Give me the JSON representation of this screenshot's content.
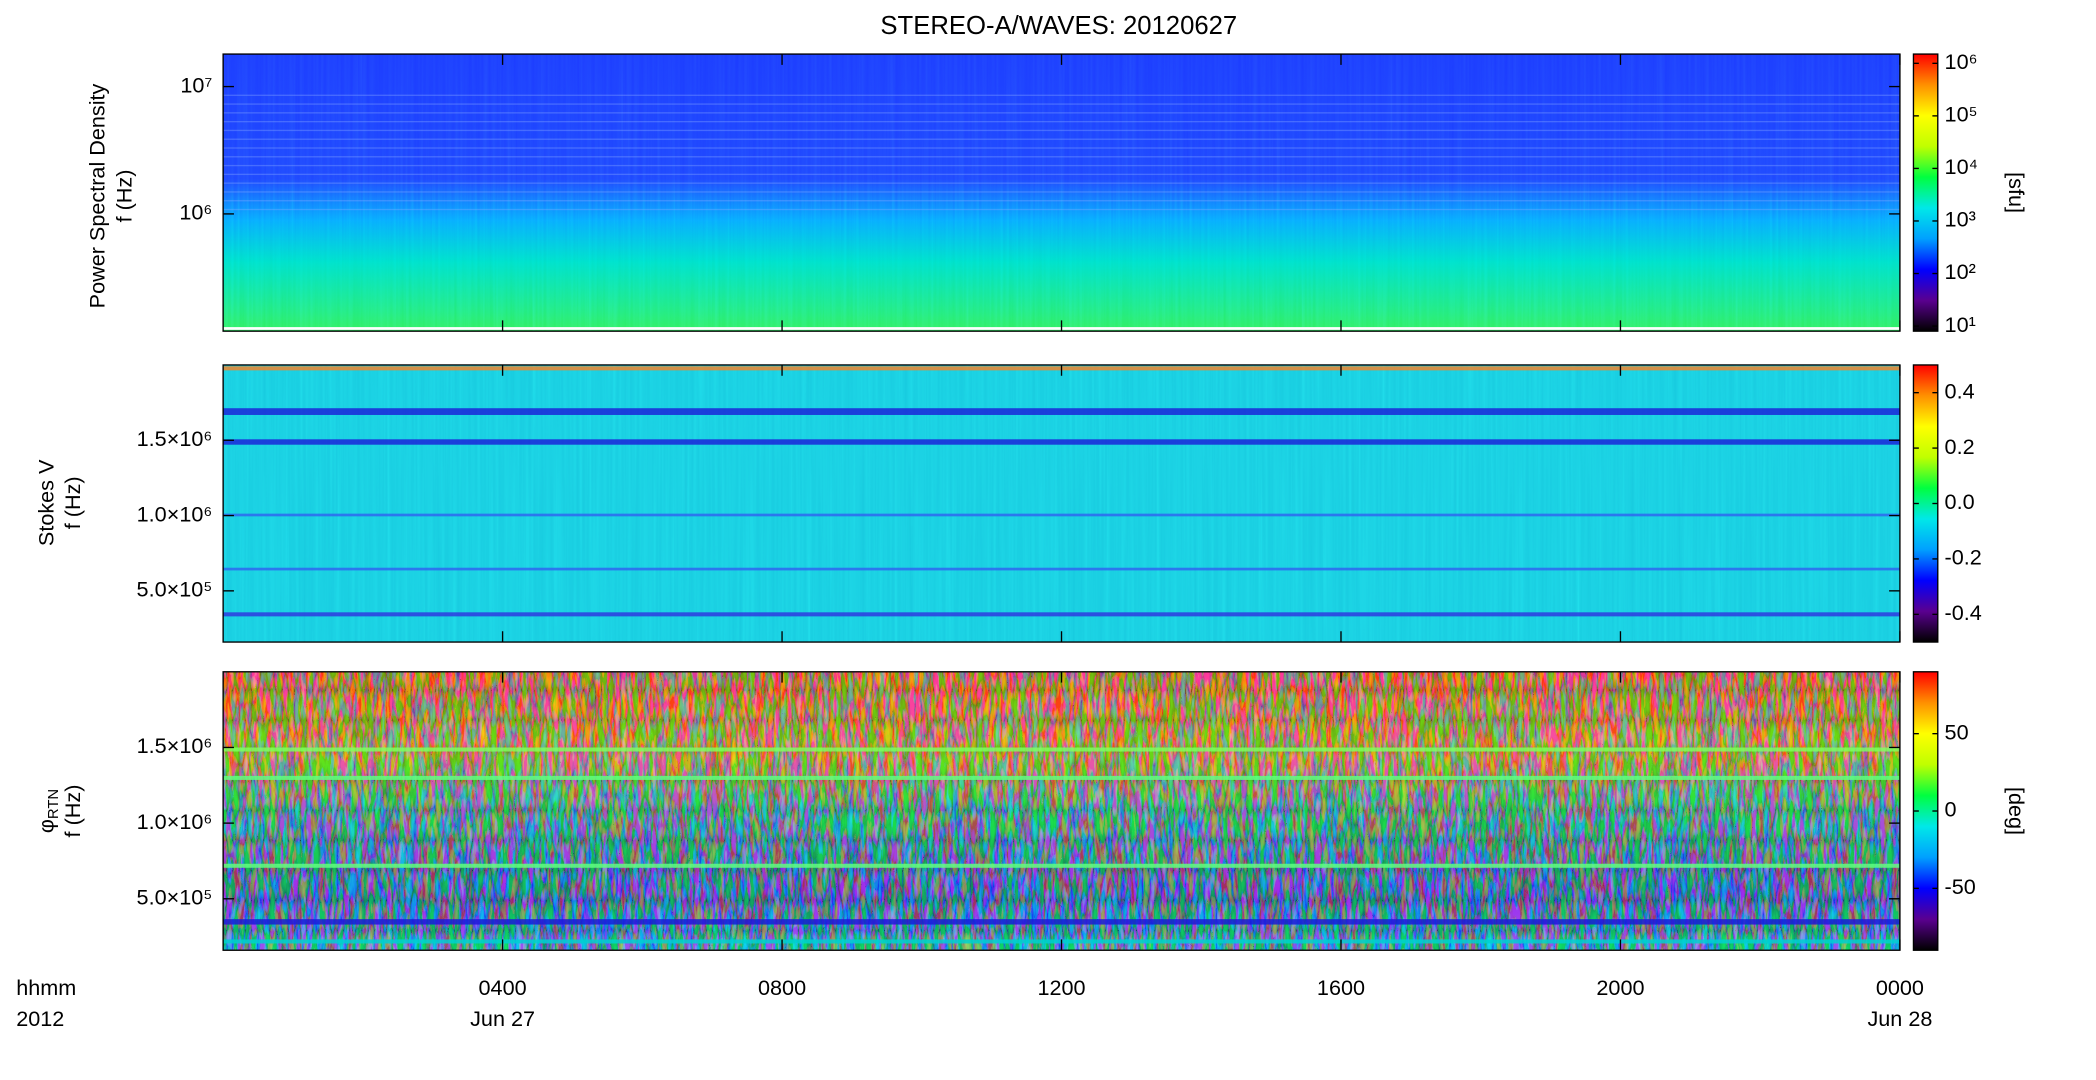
{
  "chart_data": [
    {
      "type": "spectrogram",
      "title": "STEREO-A/WAVES: 20120627",
      "ylabel": "Power Spectral Density",
      "ylabel_f": "f (Hz)",
      "ylog": true,
      "ylim": [
        120000,
        18000000
      ],
      "yticks": [
        {
          "value": 1000000,
          "label": "10⁶"
        },
        {
          "value": 10000000,
          "label": "10⁷"
        }
      ],
      "clog": true,
      "clim": [
        8,
        1500000
      ],
      "cticks": [
        {
          "value": 10,
          "label": "10¹"
        },
        {
          "value": 100,
          "label": "10²"
        },
        {
          "value": 1000,
          "label": "10³"
        },
        {
          "value": 10000,
          "label": "10⁴"
        },
        {
          "value": 100000,
          "label": "10⁵"
        },
        {
          "value": 1000000,
          "label": "10⁶"
        }
      ],
      "clabel": "[sfu]",
      "colormap": [
        "#000000",
        "#5a0090",
        "#0000ff",
        "#00a0ff",
        "#00e8e8",
        "#00ff40",
        "#c0ff00",
        "#ffff00",
        "#ff9000",
        "#ff0000"
      ],
      "xlim": [
        0,
        24
      ]
    },
    {
      "type": "spectrogram",
      "ylabel": "Stokes V",
      "ylabel_f": "f (Hz)",
      "ylim": [
        160000,
        2000000
      ],
      "yticks": [
        {
          "value": 500000,
          "label": "5.0×10⁵"
        },
        {
          "value": 1000000,
          "label": "1.0×10⁶"
        },
        {
          "value": 1500000,
          "label": "1.5×10⁶"
        }
      ],
      "clim": [
        -0.5,
        0.5
      ],
      "cticks": [
        -0.4,
        -0.2,
        {
          "value": 0,
          "label": "0.0"
        },
        0.2,
        0.4
      ],
      "xlim": [
        0,
        24
      ]
    },
    {
      "type": "spectrogram",
      "ylabel": "φ",
      "ylabel_sub": "RTN",
      "ylabel_f": "f (Hz)",
      "ylim": [
        160000,
        2000000
      ],
      "yticks": [
        {
          "value": 500000,
          "label": "5.0×10⁵"
        },
        {
          "value": 1000000,
          "label": "1.0×10⁶"
        },
        {
          "value": 1500000,
          "label": "1.5×10⁶"
        }
      ],
      "clim": [
        -90,
        90
      ],
      "cticks": [
        -50,
        0,
        50
      ],
      "clabel": "[deg]",
      "xlim": [
        0,
        24
      ],
      "xticks": [
        {
          "value": 4,
          "label": "0400",
          "date": "Jun 27"
        },
        {
          "value": 8,
          "label": "0800"
        },
        {
          "value": 12,
          "label": "1200"
        },
        {
          "value": 16,
          "label": "1600"
        },
        {
          "value": 20,
          "label": "2000"
        },
        {
          "value": 24,
          "label": "0000",
          "date": "Jun 28"
        }
      ],
      "xlabel": "hhmm",
      "xlabel2": "2012"
    }
  ]
}
